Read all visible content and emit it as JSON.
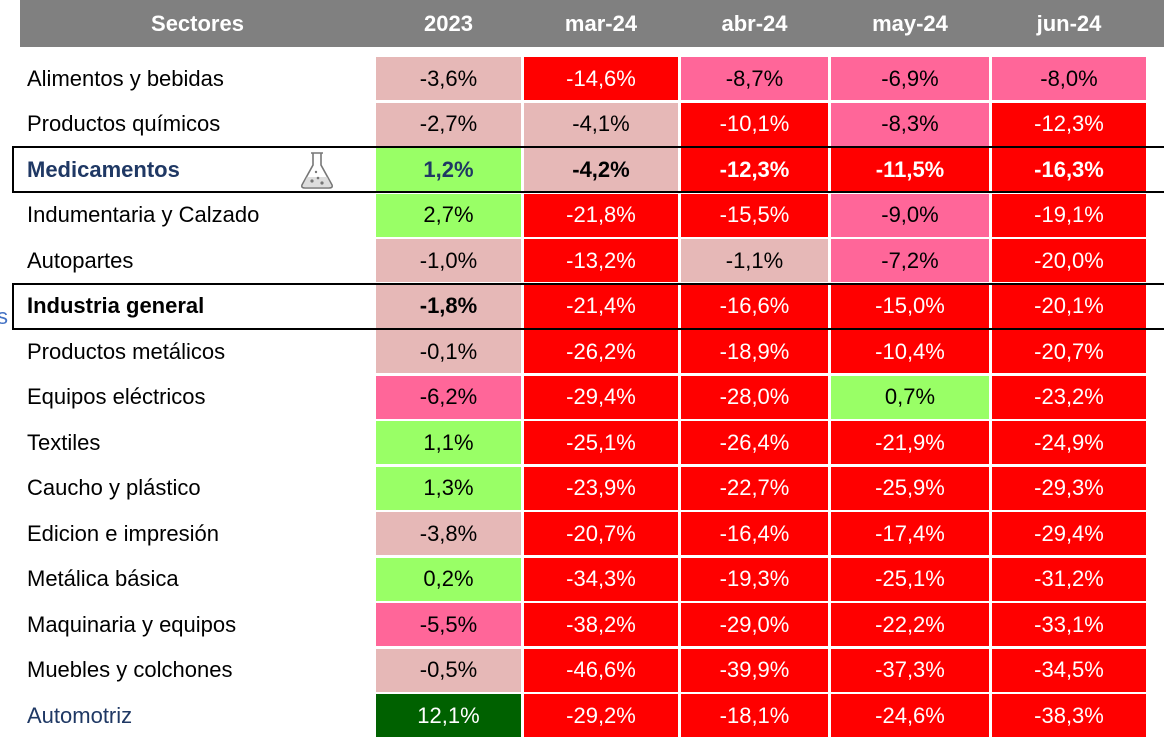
{
  "table": {
    "header": [
      "Sectores",
      "2023",
      "mar-24",
      "abr-24",
      "may-24",
      "jun-24"
    ],
    "rows": [
      {
        "label": "Alimentos y bebidas",
        "values": [
          "-3,6%",
          "-14,6%",
          "-8,7%",
          "-6,9%",
          "-8,0%"
        ],
        "colors": [
          "#e6b8b7",
          "#ff0000",
          "#ff6699",
          "#ff6699",
          "#ff6699"
        ]
      },
      {
        "label": "Productos químicos",
        "values": [
          "-2,7%",
          "-4,1%",
          "-10,1%",
          "-8,3%",
          "-12,3%"
        ],
        "colors": [
          "#e6b8b7",
          "#e6b8b7",
          "#ff0000",
          "#ff6699",
          "#ff0000"
        ]
      },
      {
        "label": "Medicamentos",
        "values": [
          "1,2%",
          "-4,2%",
          "-12,3%",
          "-11,5%",
          "-16,3%"
        ],
        "colors": [
          "#99ff66",
          "#e6b8b7",
          "#ff0000",
          "#ff0000",
          "#ff0000"
        ]
      },
      {
        "label": "Indumentaria y Calzado",
        "values": [
          "2,7%",
          "-21,8%",
          "-15,5%",
          "-9,0%",
          "-19,1%"
        ],
        "colors": [
          "#99ff66",
          "#ff0000",
          "#ff0000",
          "#ff6699",
          "#ff0000"
        ]
      },
      {
        "label": "Autopartes",
        "values": [
          "-1,0%",
          "-13,2%",
          "-1,1%",
          "-7,2%",
          "-20,0%"
        ],
        "colors": [
          "#e6b8b7",
          "#ff0000",
          "#e6b8b7",
          "#ff6699",
          "#ff0000"
        ]
      },
      {
        "label": "Industria general",
        "values": [
          "-1,8%",
          "-21,4%",
          "-16,6%",
          "-15,0%",
          "-20,1%"
        ],
        "colors": [
          "#e6b8b7",
          "#ff0000",
          "#ff0000",
          "#ff0000",
          "#ff0000"
        ]
      },
      {
        "label": "Productos metálicos",
        "values": [
          "-0,1%",
          "-26,2%",
          "-18,9%",
          "-10,4%",
          "-20,7%"
        ],
        "colors": [
          "#e6b8b7",
          "#ff0000",
          "#ff0000",
          "#ff0000",
          "#ff0000"
        ]
      },
      {
        "label": "Equipos eléctricos",
        "values": [
          "-6,2%",
          "-29,4%",
          "-28,0%",
          "0,7%",
          "-23,2%"
        ],
        "colors": [
          "#ff6699",
          "#ff0000",
          "#ff0000",
          "#99ff66",
          "#ff0000"
        ]
      },
      {
        "label": "Textiles",
        "values": [
          "1,1%",
          "-25,1%",
          "-26,4%",
          "-21,9%",
          "-24,9%"
        ],
        "colors": [
          "#99ff66",
          "#ff0000",
          "#ff0000",
          "#ff0000",
          "#ff0000"
        ]
      },
      {
        "label": "Caucho y plástico",
        "values": [
          "1,3%",
          "-23,9%",
          "-22,7%",
          "-25,9%",
          "-29,3%"
        ],
        "colors": [
          "#99ff66",
          "#ff0000",
          "#ff0000",
          "#ff0000",
          "#ff0000"
        ]
      },
      {
        "label": "Edicion e impresión",
        "values": [
          "-3,8%",
          "-20,7%",
          "-16,4%",
          "-17,4%",
          "-29,4%"
        ],
        "colors": [
          "#e6b8b7",
          "#ff0000",
          "#ff0000",
          "#ff0000",
          "#ff0000"
        ]
      },
      {
        "label": "Metálica básica",
        "values": [
          "0,2%",
          "-34,3%",
          "-19,3%",
          "-25,1%",
          "-31,2%"
        ],
        "colors": [
          "#99ff66",
          "#ff0000",
          "#ff0000",
          "#ff0000",
          "#ff0000"
        ]
      },
      {
        "label": "Maquinaria y equipos",
        "values": [
          "-5,5%",
          "-38,2%",
          "-29,0%",
          "-22,2%",
          "-33,1%"
        ],
        "colors": [
          "#ff6699",
          "#ff0000",
          "#ff0000",
          "#ff0000",
          "#ff0000"
        ]
      },
      {
        "label": "Muebles y colchones",
        "values": [
          "-0,5%",
          "-46,6%",
          "-39,9%",
          "-37,3%",
          "-34,5%"
        ],
        "colors": [
          "#e6b8b7",
          "#ff0000",
          "#ff0000",
          "#ff0000",
          "#ff0000"
        ]
      },
      {
        "label": "Automotriz",
        "values": [
          "12,1%",
          "-29,2%",
          "-18,1%",
          "-24,6%",
          "-38,3%"
        ],
        "colors": [
          "#006100",
          "#ff0000",
          "#ff0000",
          "#ff0000",
          "#ff0000"
        ]
      }
    ],
    "stray": "s"
  }
}
